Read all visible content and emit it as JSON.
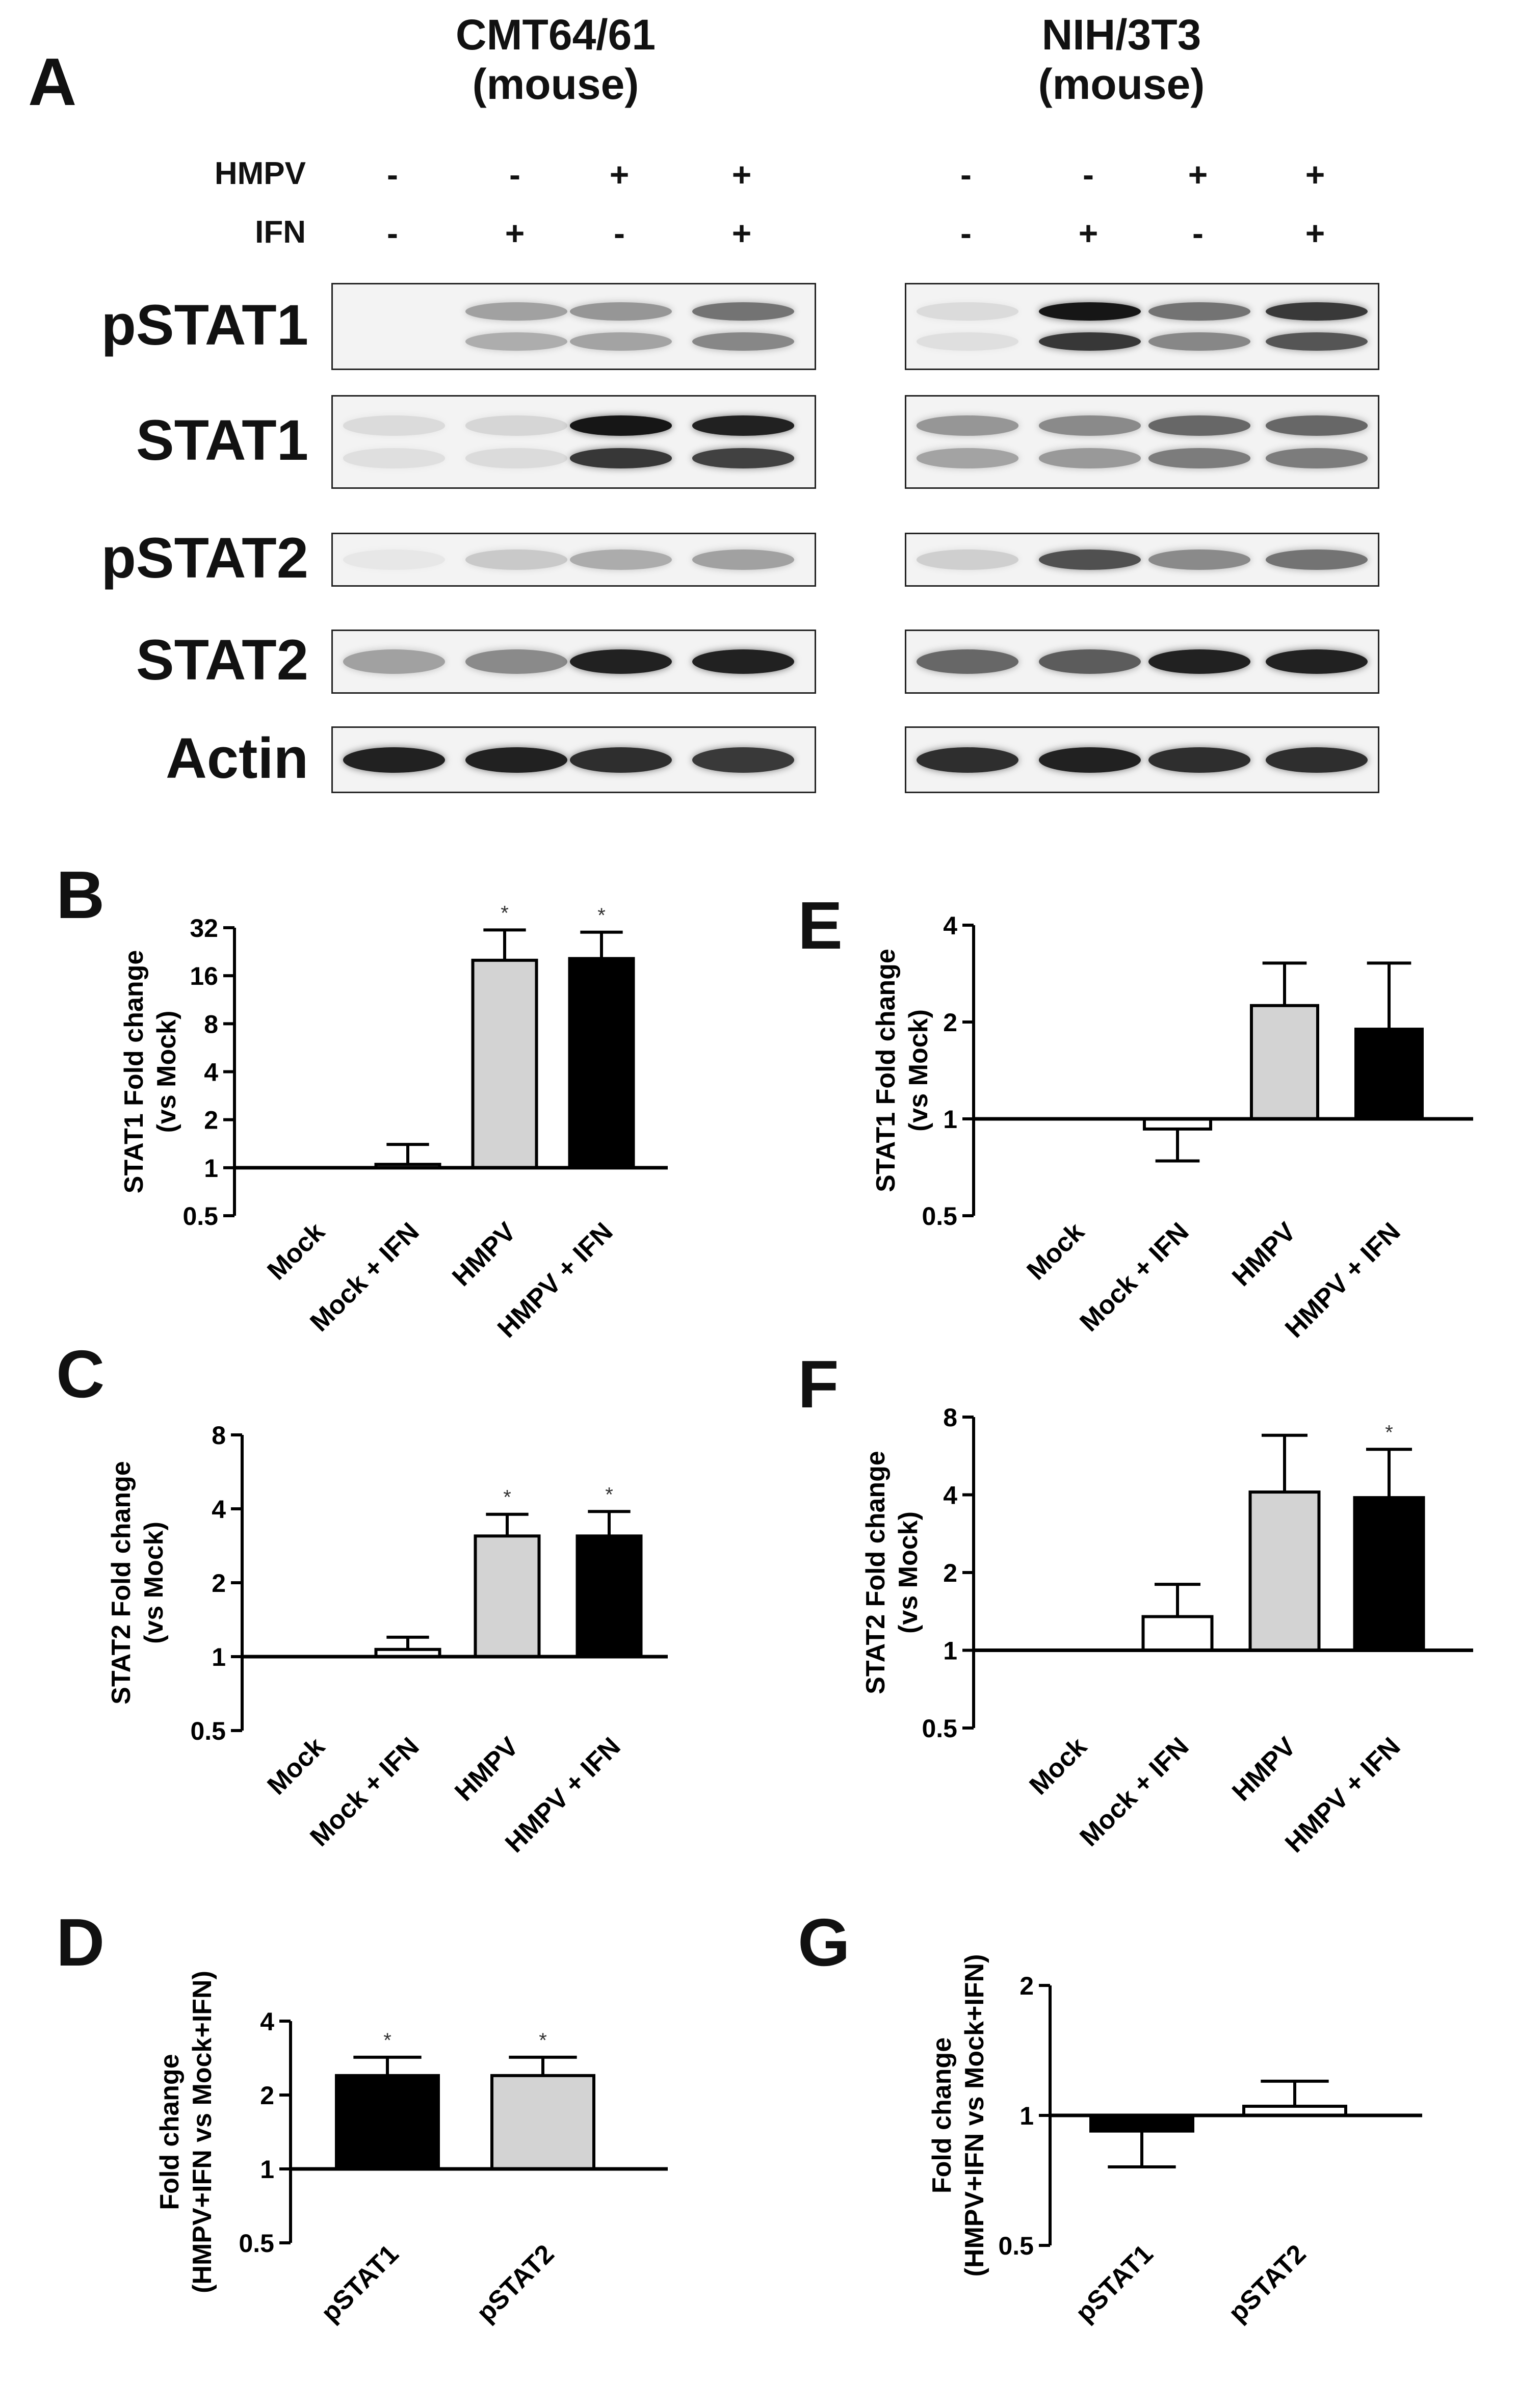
{
  "panel_a": {
    "letter": "A",
    "cells": [
      "CMT64/61\n(mouse)",
      "NIH/3T3\n(mouse)"
    ],
    "treatments": [
      {
        "label": "HMPV",
        "signs": [
          "-",
          "-",
          "+",
          "+"
        ]
      },
      {
        "label": "IFN",
        "signs": [
          "-",
          "+",
          "-",
          "+"
        ]
      }
    ],
    "blots": [
      "pSTAT1",
      "STAT1",
      "pSTAT2",
      "STAT2",
      "Actin"
    ],
    "band_darkness": {
      "left": [
        [
          0.0,
          0.35,
          0.4,
          0.55
        ],
        [
          0.1,
          0.12,
          0.95,
          0.9
        ],
        [
          0.05,
          0.18,
          0.3,
          0.35
        ],
        [
          0.35,
          0.45,
          0.9,
          0.9
        ],
        [
          0.9,
          0.9,
          0.85,
          0.8
        ]
      ],
      "right": [
        [
          0.1,
          0.95,
          0.55,
          0.8
        ],
        [
          0.4,
          0.45,
          0.6,
          0.6
        ],
        [
          0.15,
          0.7,
          0.45,
          0.55
        ],
        [
          0.6,
          0.65,
          0.9,
          0.9
        ],
        [
          0.85,
          0.9,
          0.85,
          0.85
        ]
      ]
    }
  },
  "chart_data": [
    {
      "panel": "B",
      "type": "bar",
      "scale": "log2",
      "categories": [
        "Mock",
        "Mock + IFN",
        "HMPV",
        "HMPV + IFN"
      ],
      "values": [
        1,
        1.05,
        20,
        20.5
      ],
      "errors": [
        0,
        1.4,
        31,
        30
      ],
      "significant": [
        false,
        false,
        true,
        true
      ],
      "ylabel": "STAT1 Fold change\n(vs Mock)",
      "yticks": [
        "0.5",
        "1",
        "2",
        "4",
        "8",
        "16",
        "32"
      ],
      "ylim": [
        0.5,
        32
      ],
      "colors": [
        "#ffffff",
        "#ffffff",
        "#d3d3d3",
        "#000000"
      ]
    },
    {
      "panel": "E",
      "type": "bar",
      "scale": "log2",
      "categories": [
        "Mock",
        "Mock + IFN",
        "HMPV",
        "HMPV + IFN"
      ],
      "values": [
        1,
        0.93,
        2.25,
        1.9
      ],
      "errors": [
        0,
        0.74,
        3.05,
        3.05
      ],
      "significant": [
        false,
        false,
        false,
        false
      ],
      "ylabel": "STAT1 Fold change\n(vs Mock)",
      "yticks": [
        "0.5",
        "1",
        "2",
        "4"
      ],
      "ylim": [
        0.5,
        4
      ],
      "colors": [
        "#ffffff",
        "#ffffff",
        "#d3d3d3",
        "#000000"
      ]
    },
    {
      "panel": "C",
      "type": "bar",
      "scale": "log2",
      "categories": [
        "Mock",
        "Mock + IFN",
        "HMPV",
        "HMPV + IFN"
      ],
      "values": [
        1,
        1.07,
        3.1,
        3.1
      ],
      "errors": [
        0,
        1.2,
        3.8,
        3.9
      ],
      "significant": [
        false,
        false,
        true,
        true
      ],
      "ylabel": "STAT2 Fold change\n(vs Mock)",
      "yticks": [
        "0.5",
        "1",
        "2",
        "4",
        "8"
      ],
      "ylim": [
        0.5,
        8
      ],
      "colors": [
        "#ffffff",
        "#ffffff",
        "#d3d3d3",
        "#000000"
      ]
    },
    {
      "panel": "F",
      "type": "bar",
      "scale": "log2",
      "categories": [
        "Mock",
        "Mock + IFN",
        "HMPV",
        "HMPV + IFN"
      ],
      "values": [
        1,
        1.35,
        4.1,
        3.9
      ],
      "errors": [
        0,
        1.8,
        6.8,
        6.0
      ],
      "significant": [
        false,
        false,
        false,
        true
      ],
      "ylabel": "STAT2 Fold change\n(vs Mock)",
      "yticks": [
        "0.5",
        "1",
        "2",
        "4",
        "8"
      ],
      "ylim": [
        0.5,
        8
      ],
      "colors": [
        "#ffffff",
        "#ffffff",
        "#d3d3d3",
        "#000000"
      ]
    },
    {
      "panel": "D",
      "type": "bar",
      "scale": "log2",
      "categories": [
        "pSTAT1",
        "pSTAT2"
      ],
      "values": [
        2.4,
        2.4
      ],
      "errors": [
        2.85,
        2.85
      ],
      "significant": [
        true,
        true
      ],
      "ylabel": "Fold change\n(HMPV+IFN vs Mock+IFN)",
      "yticks": [
        "0.5",
        "1",
        "2",
        "4"
      ],
      "ylim": [
        0.5,
        4
      ],
      "colors": [
        "#000000",
        "#d3d3d3"
      ]
    },
    {
      "panel": "G",
      "type": "bar",
      "scale": "log2",
      "categories": [
        "pSTAT1",
        "pSTAT2"
      ],
      "values": [
        0.92,
        1.05
      ],
      "errors": [
        0.76,
        1.2
      ],
      "significant": [
        false,
        false
      ],
      "ylabel": "Fold change\n(HMPV+IFN vs Mock+IFN)",
      "yticks": [
        "0.5",
        "1",
        "2"
      ],
      "ylim": [
        0.5,
        2
      ],
      "colors": [
        "#000000",
        "#ffffff"
      ]
    }
  ]
}
